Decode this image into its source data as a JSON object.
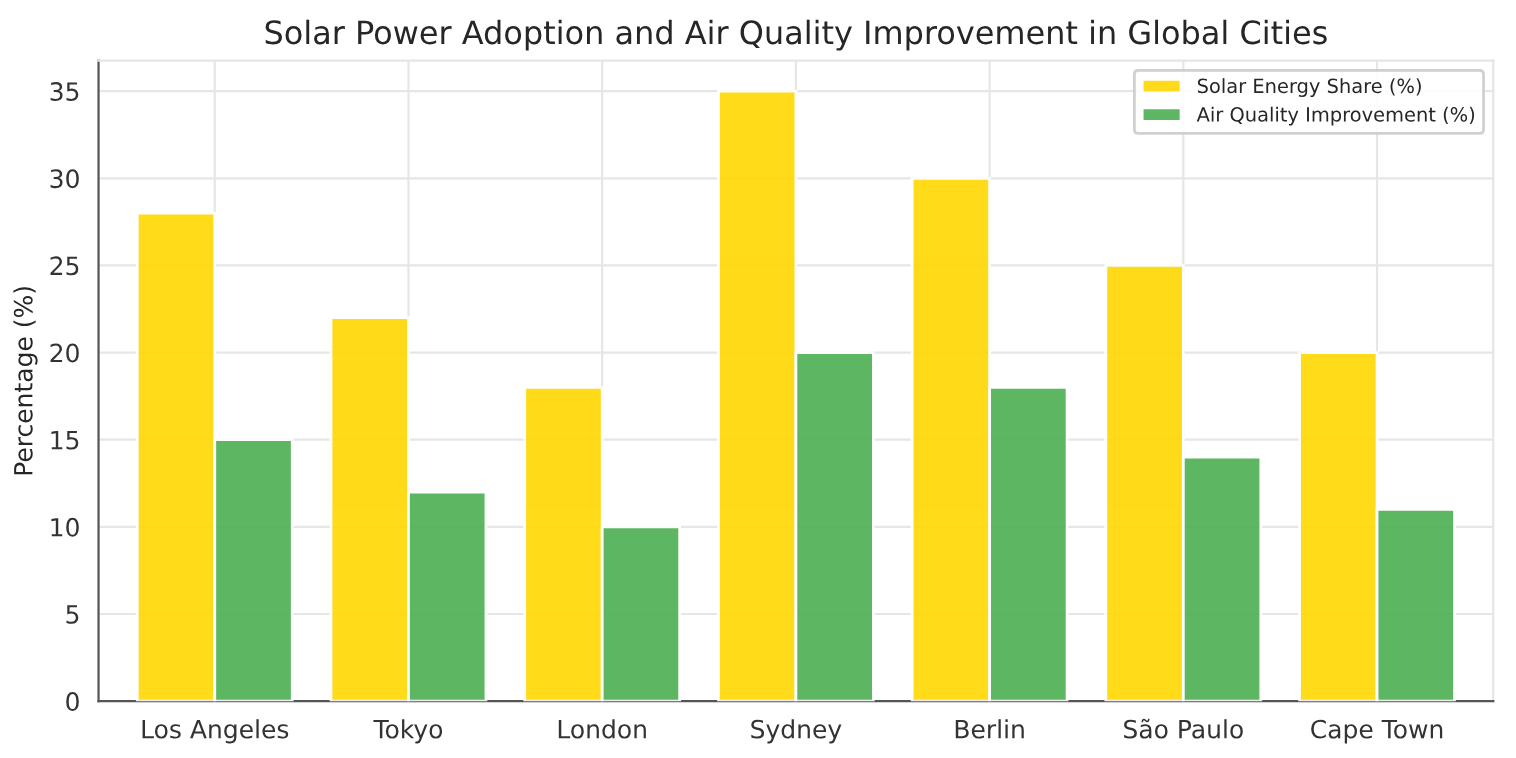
{
  "chart_data": {
    "type": "bar",
    "title": "Solar Power Adoption and Air Quality Improvement in Global Cities",
    "ylabel": "Percentage (%)",
    "categories": [
      "Los Angeles",
      "Tokyo",
      "London",
      "Sydney",
      "Berlin",
      "São Paulo",
      "Cape Town"
    ],
    "series": [
      {
        "name": "Solar Energy Share (%)",
        "color": "#ffd700",
        "values": [
          28,
          22,
          18,
          35,
          30,
          25,
          20
        ]
      },
      {
        "name": "Air Quality Improvement (%)",
        "color": "#4caf50",
        "values": [
          15,
          12,
          10,
          20,
          18,
          14,
          11
        ]
      }
    ],
    "ylim": [
      0,
      36.75
    ],
    "yticks": [
      0,
      5,
      10,
      15,
      20,
      25,
      30,
      35
    ],
    "grid": true,
    "legend": "top right"
  }
}
